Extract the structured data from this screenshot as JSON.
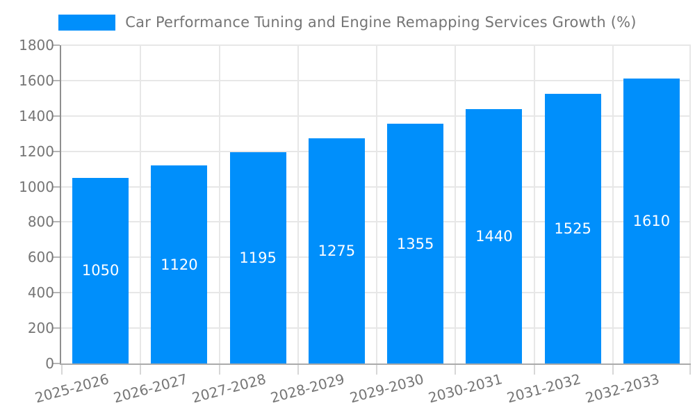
{
  "legend": {
    "label": "Car Performance Tuning and Engine Remapping Services Growth (%)"
  },
  "chart_data": {
    "type": "bar",
    "title": "Car Performance Tuning and Engine Remapping Services Growth (%)",
    "categories": [
      "2025-2026",
      "2026-2027",
      "2027-2028",
      "2028-2029",
      "2029-2030",
      "2030-2031",
      "2031-2032",
      "2032-2033"
    ],
    "values": [
      1050,
      1120,
      1195,
      1275,
      1355,
      1440,
      1525,
      1610
    ],
    "xlabel": "",
    "ylabel": "",
    "ylim": [
      0,
      1800
    ],
    "ytick_step": 200,
    "grid": true,
    "legend_position": "top",
    "colors": {
      "bar": "#008FFB",
      "bar_value_text": "#ffffff",
      "axis_text": "#757575",
      "gridline": "#e7e7e7",
      "axis_line": "#9a9a9a"
    }
  }
}
